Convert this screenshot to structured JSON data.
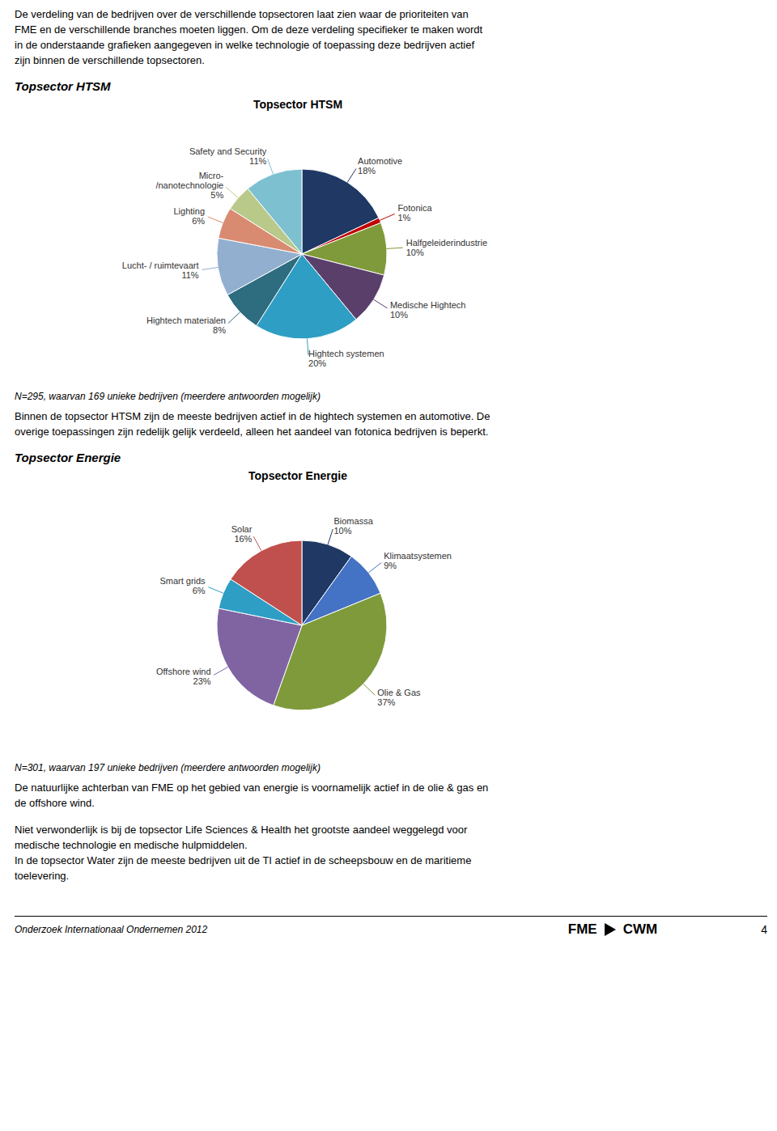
{
  "annotations": [
    "De verdeling van de bedrijven over de verschillende topsectoren laat zien waar de prioriteiten van",
    "FME en de verschillende branches moeten liggen. Om de deze verdeling specifieker te maken wordt",
    "in de onderstaande grafieken aangegeven in welke technologie of toepassing deze bedrijven actief",
    "zijn binnen de verschillende topsectoren."
  ],
  "footer": [
    "Onderzoek Internationaal Ondernemen 2012",
    "FME",
    "CWM",
    "4"
  ],
  "chart_data": [
    {
      "type": "pie",
      "subtitle": "Topsector HTSM",
      "title": "Topsector HTSM",
      "categories": [
        "Automotive",
        "Fotonica",
        "Halfgeleiderindustrie",
        "Medische Hightech",
        "Hightech systemen",
        "Hightech materialen",
        "Lucht- / ruimtevaart",
        "Lighting",
        "Micro-\n/nanotechnologie",
        "Safety and Security"
      ],
      "values": [
        18,
        1,
        10,
        10,
        20,
        8,
        11,
        6,
        5,
        11
      ],
      "value_labels": [
        "18%",
        "1%",
        "10%",
        "10%",
        "20%",
        "8%",
        "11%",
        "6%",
        "5%",
        "11%"
      ],
      "colors": [
        "#1F3864",
        "#C00000",
        "#7F9A3A",
        "#5B3F6B",
        "#2E9EC4",
        "#2E6C80",
        "#92AFCF",
        "#D98B72",
        "#B8C98A",
        "#7DC0D0"
      ],
      "data_labels": true,
      "annotations": [
        "N=295, waarvan 169 unieke bedrijven (meerdere antwoorden mogelijk)",
        "Binnen de topsector HTSM zijn de meeste bedrijven actief in de hightech systemen en automotive. De",
        "overige toepassingen zijn redelijk gelijk verdeeld, alleen het aandeel van fotonica bedrijven is beperkt."
      ]
    },
    {
      "type": "pie",
      "subtitle": "Topsector Energie",
      "title": "Topsector Energie",
      "categories": [
        "Biomassa",
        "Klimaatsystemen",
        "Olie & Gas",
        "Offshore wind",
        "Smart grids",
        "Solar"
      ],
      "values": [
        10,
        9,
        37,
        23,
        6,
        16
      ],
      "value_labels": [
        "10%",
        "9%",
        "37%",
        "23%",
        "6%",
        "16%"
      ],
      "colors": [
        "#1F3864",
        "#4472C4",
        "#7F9A3A",
        "#8064A2",
        "#2E9EC4",
        "#C0504D"
      ],
      "data_labels": true,
      "annotations": [
        "N=301, waarvan 197 unieke bedrijven (meerdere antwoorden mogelijk)",
        "De natuurlijke achterban van FME op het gebied van energie is voornamelijk actief in de olie & gas en",
        "de offshore wind.",
        "Niet verwonderlijk is bij de topsector Life Sciences & Health het grootste aandeel weggelegd voor",
        "medische technologie en medische hulpmiddelen.",
        "In de topsector Water zijn de meeste bedrijven uit de TI actief in de scheepsbouw en de maritieme",
        "toelevering."
      ]
    }
  ]
}
